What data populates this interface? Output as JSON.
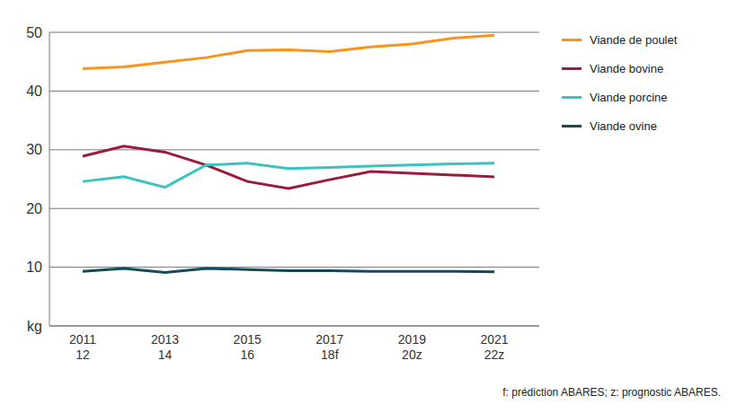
{
  "chart_data": {
    "type": "line",
    "categories": [
      "2011\n12",
      null,
      "2013\n14",
      null,
      "2015\n16",
      null,
      "2017\n18f",
      null,
      "2019\n20z",
      null,
      "2021\n22z"
    ],
    "series": [
      {
        "name": "Viande de poulet",
        "color": "#f7941d",
        "values": [
          43.8,
          44.1,
          44.9,
          45.7,
          46.9,
          47.0,
          46.7,
          47.5,
          48.0,
          49.0,
          49.5
        ]
      },
      {
        "name": "Viande bovine",
        "color": "#9b1b3e",
        "values": [
          28.9,
          30.6,
          29.6,
          27.4,
          24.6,
          23.4,
          24.9,
          26.3,
          26.0,
          25.7,
          25.4
        ]
      },
      {
        "name": "Viande porcine",
        "color": "#3ec1c1",
        "values": [
          24.6,
          25.4,
          23.6,
          27.4,
          27.7,
          26.8,
          27.0,
          27.2,
          27.4,
          27.6,
          27.7
        ]
      },
      {
        "name": "Viande ovine",
        "color": "#134b5c",
        "values": [
          9.3,
          9.8,
          9.1,
          9.8,
          9.6,
          9.4,
          9.4,
          9.3,
          9.3,
          9.3,
          9.2
        ]
      }
    ],
    "ylim": [
      0,
      50
    ],
    "yticks": [
      {
        "value": 0,
        "label": "kg"
      },
      10,
      20,
      30,
      40,
      50
    ],
    "grid": true,
    "legend": "top right",
    "annotations": [
      "f: prédiction ABARES; z: prognostic ABARES."
    ]
  }
}
